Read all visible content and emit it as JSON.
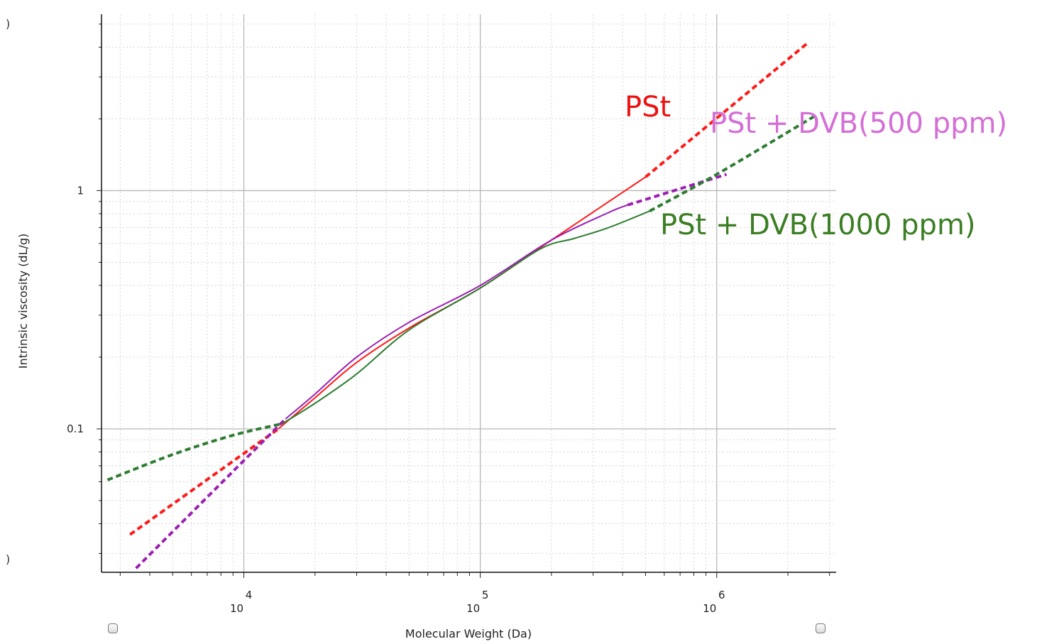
{
  "chart_data": {
    "type": "line",
    "xlabel": "Molecular Weight (Da)",
    "ylabel": "Intrinsic viscosity (dL/g)",
    "x_scale": "log",
    "y_scale": "log",
    "xlim": [
      2500,
      3200000
    ],
    "ylim": [
      0.025,
      5.5
    ],
    "x_ticks": [
      {
        "value": 10000,
        "base": "10",
        "exp": "4"
      },
      {
        "value": 100000,
        "base": "10",
        "exp": "5"
      },
      {
        "value": 1000000,
        "base": "10",
        "exp": "6"
      }
    ],
    "y_ticks": [
      {
        "value": 0.1,
        "label": "0.1"
      },
      {
        "value": 1,
        "label": "1"
      }
    ],
    "grid": true,
    "series": [
      {
        "name": "PSt",
        "color": "#ff1a1a",
        "label_color": "#ee1111",
        "solid_x": [
          14000,
          20000,
          30000,
          50000,
          100000,
          200000,
          350000,
          500000
        ],
        "solid_y": [
          0.1,
          0.135,
          0.19,
          0.265,
          0.39,
          0.62,
          0.9,
          1.14
        ],
        "dashed_segments": [
          {
            "x": [
              3300,
              14000
            ],
            "y": [
              0.036,
              0.1
            ]
          },
          {
            "x": [
              500000,
              2450000
            ],
            "y": [
              1.14,
              4.2
            ]
          }
        ]
      },
      {
        "name": "PSt + DVB(500 ppm)",
        "color": "#9c1fb3",
        "label_color": "#d46fd6",
        "solid_x": [
          15000,
          20000,
          30000,
          50000,
          100000,
          200000,
          350000,
          420000
        ],
        "solid_y": [
          0.11,
          0.14,
          0.2,
          0.28,
          0.4,
          0.62,
          0.81,
          0.87
        ],
        "dashed_segments": [
          {
            "x": [
              3500,
              15000
            ],
            "y": [
              0.026,
              0.11
            ]
          },
          {
            "x": [
              420000,
              1100000
            ],
            "y": [
              0.87,
              1.17
            ]
          }
        ]
      },
      {
        "name": "PSt + DVB(1000 ppm)",
        "color": "#2e7d32",
        "label_color": "#3b7e24",
        "solid_x": [
          14500,
          20000,
          30000,
          50000,
          100000,
          180000,
          250000,
          350000,
          520000
        ],
        "solid_y": [
          0.105,
          0.128,
          0.17,
          0.26,
          0.39,
          0.57,
          0.63,
          0.7,
          0.82
        ],
        "dashed_segments": [
          {
            "x": [
              2650,
              5000,
              9000,
              14500
            ],
            "y": [
              0.061,
              0.078,
              0.094,
              0.105
            ]
          },
          {
            "x": [
              520000,
              1000000,
              2650000
            ],
            "y": [
              0.82,
              1.17,
              2.08
            ]
          }
        ]
      }
    ]
  },
  "controls": {
    "left_edge_glyph": ")",
    "left_edge_glyph_bottom": ")"
  }
}
